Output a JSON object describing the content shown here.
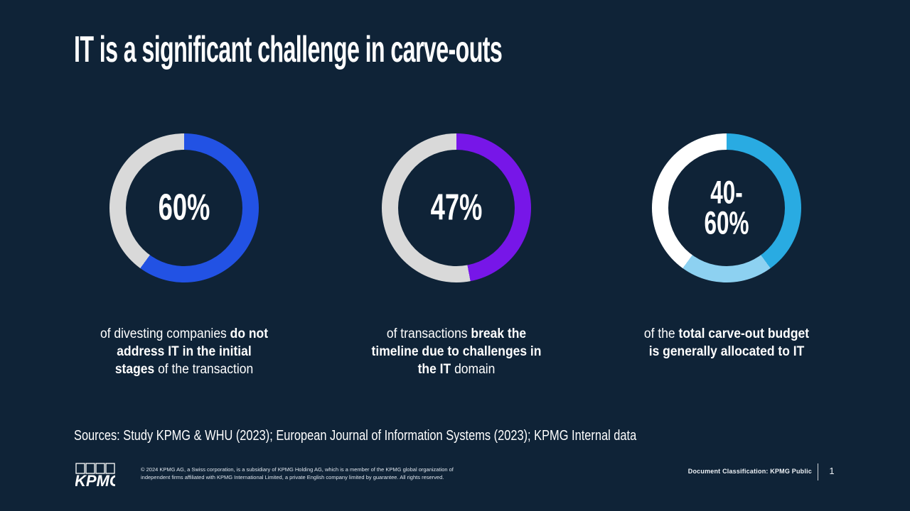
{
  "slide": {
    "title": "IT is a significant challenge in carve-outs",
    "sources": "Sources: Study KPMG & WHU (2023); European Journal of Information Systems (2023); KPMG Internal data"
  },
  "chart_data": [
    {
      "type": "donut",
      "center_label": "60%",
      "start_angle_deg": 0,
      "segments": [
        {
          "name": "value",
          "value": 60,
          "color": "#2252e4"
        },
        {
          "name": "remainder",
          "value": 40,
          "color": "#d9d9d9"
        }
      ],
      "description_parts": [
        {
          "text": "of divesting companies ",
          "bold": false
        },
        {
          "text": "do not\naddress IT in the initial\nstages",
          "bold": true
        },
        {
          "text": " of the transaction",
          "bold": false
        }
      ]
    },
    {
      "type": "donut",
      "center_label": "47%",
      "start_angle_deg": 0,
      "segments": [
        {
          "name": "value",
          "value": 47,
          "color": "#7716e8"
        },
        {
          "name": "remainder",
          "value": 53,
          "color": "#d9d9d9"
        }
      ],
      "description_parts": [
        {
          "text": "of transactions ",
          "bold": false
        },
        {
          "text": "break the\ntimeline due to challenges in\nthe IT",
          "bold": true
        },
        {
          "text": " domain",
          "bold": false
        }
      ]
    },
    {
      "type": "donut",
      "center_label": "40-\n60%",
      "start_angle_deg": 0,
      "segments": [
        {
          "name": "lower-bound",
          "value": 40,
          "color": "#29abe2"
        },
        {
          "name": "range-upper",
          "value": 20,
          "color": "#8dd1f1"
        },
        {
          "name": "remainder",
          "value": 40,
          "color": "#ffffff"
        }
      ],
      "description_parts": [
        {
          "text": "of the ",
          "bold": false
        },
        {
          "text": "total carve-out budget\nis generally allocated to IT",
          "bold": true
        }
      ]
    }
  ],
  "footer": {
    "logo_text": "KPMG",
    "copyright_line1": "© 2024 KPMG AG, a Swiss corporation, is a subsidiary of KPMG Holding AG, which is a member of the KPMG global organization of",
    "copyright_line2": "independent firms affiliated with KPMG International Limited, a private English company limited by guarantee. All rights reserved.",
    "classification": "Document Classification: KPMG Public",
    "page_number": "1"
  },
  "colors": {
    "background": "#0f2337",
    "accent_blue": "#2252e4",
    "accent_purple": "#7716e8",
    "accent_cyan": "#29abe2",
    "accent_light_blue": "#8dd1f1",
    "ring_gray": "#d9d9d9",
    "text": "#ffffff"
  }
}
